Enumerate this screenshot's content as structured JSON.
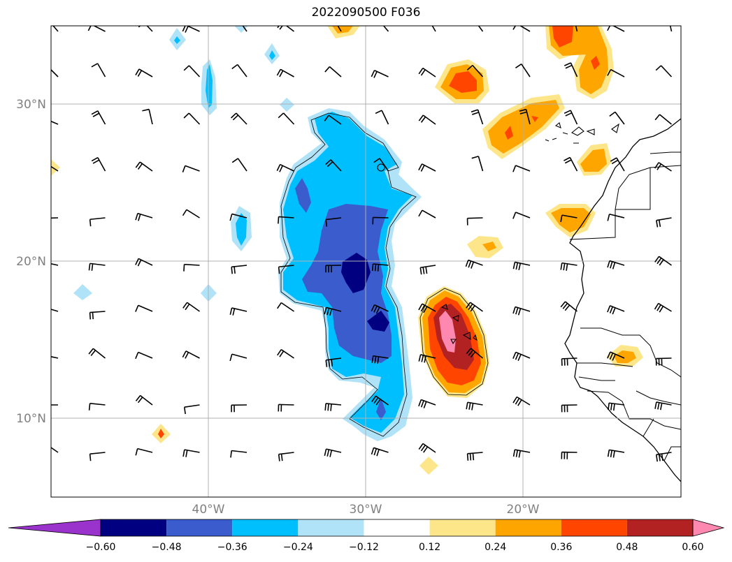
{
  "title": "2022090500 F036",
  "map": {
    "lon_range": [
      -50,
      -10
    ],
    "lat_range": [
      5,
      35
    ],
    "lat_ticks": [
      {
        "value": 30,
        "label": "30°N"
      },
      {
        "value": 20,
        "label": "20°N"
      },
      {
        "value": 10,
        "label": "10°N"
      }
    ],
    "lon_ticks": [
      {
        "value": -40,
        "label": "40°W"
      },
      {
        "value": -30,
        "label": "30°W"
      },
      {
        "value": -20,
        "label": "20°W"
      }
    ],
    "gridlines": true
  },
  "colorbar": {
    "extend": "both",
    "ticks": [
      "−0.60",
      "−0.48",
      "−0.36",
      "−0.24",
      "−0.12",
      "0.12",
      "0.24",
      "0.36",
      "0.48",
      "0.60"
    ],
    "colors": [
      "#9933cc",
      "#000080",
      "#3a5ccc",
      "#00bfff",
      "#b0e2f8",
      "#ffffff",
      "#fde68a",
      "#ffa500",
      "#ff4500",
      "#b22222",
      "#ff88b0"
    ]
  },
  "colors": {
    "neg_light": "#b0e2f8",
    "neg_mid": "#00bfff",
    "neg_strong": "#3a5ccc",
    "neg_max": "#000080",
    "pos_light": "#fde68a",
    "pos_mid": "#ffa500",
    "pos_strong": "#ff4500",
    "pos_dark": "#b22222",
    "pos_max": "#ff88b0"
  }
}
